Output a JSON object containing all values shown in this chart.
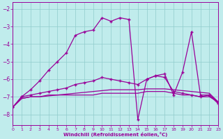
{
  "xlabel": "Windchill (Refroidissement éolien,°C)",
  "xlim": [
    0,
    23
  ],
  "ylim": [
    -8.6,
    -1.6
  ],
  "yticks": [
    -8,
    -7,
    -6,
    -5,
    -4,
    -3,
    -2
  ],
  "xticks": [
    0,
    1,
    2,
    3,
    4,
    5,
    6,
    7,
    8,
    9,
    10,
    11,
    12,
    13,
    14,
    15,
    16,
    17,
    18,
    19,
    20,
    21,
    22,
    23
  ],
  "bg": "#c0ecec",
  "grid_color": "#90cccc",
  "lc": "#990099",
  "curve_big_x": [
    0,
    1,
    2,
    3,
    4,
    5,
    6,
    7,
    8,
    9,
    10,
    11,
    12,
    13,
    14,
    15,
    16,
    17,
    18,
    19,
    20,
    21,
    22,
    23
  ],
  "curve_big_y": [
    -7.6,
    -7.0,
    -6.6,
    -6.1,
    -5.5,
    -5.0,
    -4.5,
    -3.5,
    -3.3,
    -3.2,
    -2.5,
    -2.7,
    -2.5,
    -2.6,
    -8.3,
    -6.0,
    -5.8,
    -5.7,
    -6.9,
    -5.6,
    -3.3,
    -6.9,
    -6.9,
    -7.4
  ],
  "curve_med_x": [
    0,
    1,
    2,
    3,
    4,
    5,
    6,
    7,
    8,
    9,
    10,
    11,
    12,
    13,
    14,
    15,
    16,
    17,
    18,
    19,
    20,
    21,
    22,
    23
  ],
  "curve_med_y": [
    -7.6,
    -7.0,
    -6.9,
    -6.8,
    -6.7,
    -6.6,
    -6.5,
    -6.3,
    -6.2,
    -6.1,
    -5.9,
    -6.0,
    -6.1,
    -6.2,
    -6.3,
    -6.0,
    -5.8,
    -5.9,
    -6.7,
    -6.8,
    -6.9,
    -7.0,
    -6.9,
    -7.3
  ],
  "curve_flat_x": [
    0,
    1,
    2,
    3,
    4,
    5,
    6,
    7,
    8,
    9,
    10,
    11,
    12,
    13,
    14,
    15,
    16,
    17,
    18,
    19,
    20,
    21,
    22,
    23
  ],
  "curve_flat_y": [
    -7.6,
    -7.1,
    -7.0,
    -7.0,
    -6.9,
    -6.9,
    -6.9,
    -6.9,
    -6.9,
    -6.9,
    -6.8,
    -6.8,
    -6.8,
    -6.8,
    -6.8,
    -6.7,
    -6.7,
    -6.7,
    -6.8,
    -6.9,
    -6.9,
    -7.0,
    -7.0,
    -7.3
  ],
  "curve_tilt_x": [
    0,
    1,
    2,
    3,
    4,
    5,
    6,
    7,
    8,
    9,
    10,
    11,
    12,
    13,
    14,
    15,
    16,
    17,
    18,
    19,
    20,
    21,
    22,
    23
  ],
  "curve_tilt_y": [
    -7.6,
    -7.1,
    -7.0,
    -7.0,
    -6.95,
    -6.9,
    -6.85,
    -6.8,
    -6.75,
    -6.7,
    -6.65,
    -6.6,
    -6.6,
    -6.6,
    -6.6,
    -6.55,
    -6.55,
    -6.55,
    -6.6,
    -6.65,
    -6.7,
    -6.75,
    -6.8,
    -7.3
  ]
}
